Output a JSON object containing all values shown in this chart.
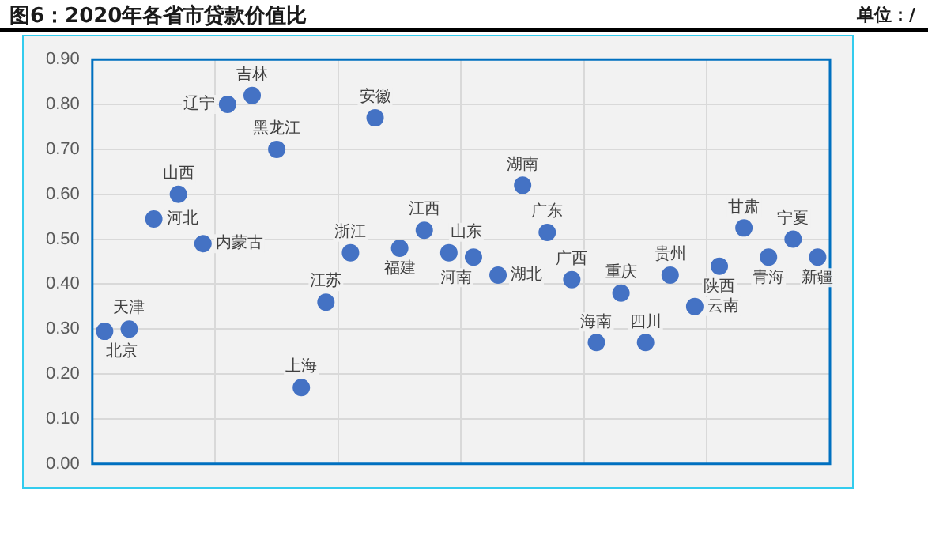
{
  "chart_data": {
    "type": "scatter",
    "title": "图6：2020年各省市贷款价值比",
    "annotations": [
      "单位：/"
    ],
    "categories": [
      null,
      null,
      null,
      null,
      null,
      null,
      null,
      null,
      null,
      null,
      null,
      null,
      null,
      null,
      null,
      null,
      null,
      null,
      null,
      null,
      null,
      null,
      null,
      null,
      null,
      null,
      null,
      null,
      null,
      null
    ],
    "series": [
      {
        "name": "北京",
        "color": "#4472c4",
        "values": [
          0.295,
          null,
          null,
          null,
          null,
          null,
          null,
          null,
          null,
          null,
          null,
          null,
          null,
          null,
          null,
          null,
          null,
          null,
          null,
          null,
          null,
          null,
          null,
          null,
          null,
          null,
          null,
          null,
          null,
          null
        ]
      },
      {
        "name": "天津",
        "color": "#4472c4",
        "values": [
          null,
          0.3,
          null,
          null,
          null,
          null,
          null,
          null,
          null,
          null,
          null,
          null,
          null,
          null,
          null,
          null,
          null,
          null,
          null,
          null,
          null,
          null,
          null,
          null,
          null,
          null,
          null,
          null,
          null,
          null
        ]
      },
      {
        "name": "河北",
        "color": "#4472c4",
        "values": [
          null,
          null,
          0.545,
          null,
          null,
          null,
          null,
          null,
          null,
          null,
          null,
          null,
          null,
          null,
          null,
          null,
          null,
          null,
          null,
          null,
          null,
          null,
          null,
          null,
          null,
          null,
          null,
          null,
          null,
          null
        ]
      },
      {
        "name": "山西",
        "color": "#4472c4",
        "values": [
          null,
          null,
          null,
          0.6,
          null,
          null,
          null,
          null,
          null,
          null,
          null,
          null,
          null,
          null,
          null,
          null,
          null,
          null,
          null,
          null,
          null,
          null,
          null,
          null,
          null,
          null,
          null,
          null,
          null,
          null
        ]
      },
      {
        "name": "内蒙古",
        "color": "#4472c4",
        "values": [
          null,
          null,
          null,
          null,
          0.49,
          null,
          null,
          null,
          null,
          null,
          null,
          null,
          null,
          null,
          null,
          null,
          null,
          null,
          null,
          null,
          null,
          null,
          null,
          null,
          null,
          null,
          null,
          null,
          null,
          null
        ]
      },
      {
        "name": "辽宁",
        "color": "#4472c4",
        "values": [
          null,
          null,
          null,
          null,
          null,
          0.8,
          null,
          null,
          null,
          null,
          null,
          null,
          null,
          null,
          null,
          null,
          null,
          null,
          null,
          null,
          null,
          null,
          null,
          null,
          null,
          null,
          null,
          null,
          null,
          null
        ]
      },
      {
        "name": "吉林",
        "color": "#4472c4",
        "values": [
          null,
          null,
          null,
          null,
          null,
          null,
          0.82,
          null,
          null,
          null,
          null,
          null,
          null,
          null,
          null,
          null,
          null,
          null,
          null,
          null,
          null,
          null,
          null,
          null,
          null,
          null,
          null,
          null,
          null,
          null
        ]
      },
      {
        "name": "黑龙江",
        "color": "#4472c4",
        "values": [
          null,
          null,
          null,
          null,
          null,
          null,
          null,
          0.7,
          null,
          null,
          null,
          null,
          null,
          null,
          null,
          null,
          null,
          null,
          null,
          null,
          null,
          null,
          null,
          null,
          null,
          null,
          null,
          null,
          null,
          null
        ]
      },
      {
        "name": "上海",
        "color": "#4472c4",
        "values": [
          null,
          null,
          null,
          null,
          null,
          null,
          null,
          null,
          0.17,
          null,
          null,
          null,
          null,
          null,
          null,
          null,
          null,
          null,
          null,
          null,
          null,
          null,
          null,
          null,
          null,
          null,
          null,
          null,
          null,
          null
        ]
      },
      {
        "name": "江苏",
        "color": "#4472c4",
        "values": [
          null,
          null,
          null,
          null,
          null,
          null,
          null,
          null,
          null,
          0.36,
          null,
          null,
          null,
          null,
          null,
          null,
          null,
          null,
          null,
          null,
          null,
          null,
          null,
          null,
          null,
          null,
          null,
          null,
          null,
          null
        ]
      },
      {
        "name": "浙江",
        "color": "#4472c4",
        "values": [
          null,
          null,
          null,
          null,
          null,
          null,
          null,
          null,
          null,
          null,
          0.47,
          null,
          null,
          null,
          null,
          null,
          null,
          null,
          null,
          null,
          null,
          null,
          null,
          null,
          null,
          null,
          null,
          null,
          null,
          null
        ]
      },
      {
        "name": "安徽",
        "color": "#4472c4",
        "values": [
          null,
          null,
          null,
          null,
          null,
          null,
          null,
          null,
          null,
          null,
          null,
          0.77,
          null,
          null,
          null,
          null,
          null,
          null,
          null,
          null,
          null,
          null,
          null,
          null,
          null,
          null,
          null,
          null,
          null,
          null
        ]
      },
      {
        "name": "福建",
        "color": "#4472c4",
        "values": [
          null,
          null,
          null,
          null,
          null,
          null,
          null,
          null,
          null,
          null,
          null,
          null,
          0.48,
          null,
          null,
          null,
          null,
          null,
          null,
          null,
          null,
          null,
          null,
          null,
          null,
          null,
          null,
          null,
          null,
          null
        ]
      },
      {
        "name": "江西",
        "color": "#4472c4",
        "values": [
          null,
          null,
          null,
          null,
          null,
          null,
          null,
          null,
          null,
          null,
          null,
          null,
          null,
          0.52,
          null,
          null,
          null,
          null,
          null,
          null,
          null,
          null,
          null,
          null,
          null,
          null,
          null,
          null,
          null,
          null
        ]
      },
      {
        "name": "山东",
        "color": "#4472c4",
        "values": [
          null,
          null,
          null,
          null,
          null,
          null,
          null,
          null,
          null,
          null,
          null,
          null,
          null,
          null,
          0.47,
          null,
          null,
          null,
          null,
          null,
          null,
          null,
          null,
          null,
          null,
          null,
          null,
          null,
          null,
          null
        ]
      },
      {
        "name": "河南",
        "color": "#4472c4",
        "values": [
          null,
          null,
          null,
          null,
          null,
          null,
          null,
          null,
          null,
          null,
          null,
          null,
          null,
          null,
          null,
          0.46,
          null,
          null,
          null,
          null,
          null,
          null,
          null,
          null,
          null,
          null,
          null,
          null,
          null,
          null
        ]
      },
      {
        "name": "湖北",
        "color": "#4472c4",
        "values": [
          null,
          null,
          null,
          null,
          null,
          null,
          null,
          null,
          null,
          null,
          null,
          null,
          null,
          null,
          null,
          null,
          0.42,
          null,
          null,
          null,
          null,
          null,
          null,
          null,
          null,
          null,
          null,
          null,
          null,
          null
        ]
      },
      {
        "name": "湖南",
        "color": "#4472c4",
        "values": [
          null,
          null,
          null,
          null,
          null,
          null,
          null,
          null,
          null,
          null,
          null,
          null,
          null,
          null,
          null,
          null,
          null,
          0.62,
          null,
          null,
          null,
          null,
          null,
          null,
          null,
          null,
          null,
          null,
          null,
          null
        ]
      },
      {
        "name": "广东",
        "color": "#4472c4",
        "values": [
          null,
          null,
          null,
          null,
          null,
          null,
          null,
          null,
          null,
          null,
          null,
          null,
          null,
          null,
          null,
          null,
          null,
          null,
          0.515,
          null,
          null,
          null,
          null,
          null,
          null,
          null,
          null,
          null,
          null,
          null
        ]
      },
      {
        "name": "广西",
        "color": "#4472c4",
        "values": [
          null,
          null,
          null,
          null,
          null,
          null,
          null,
          null,
          null,
          null,
          null,
          null,
          null,
          null,
          null,
          null,
          null,
          null,
          null,
          0.41,
          null,
          null,
          null,
          null,
          null,
          null,
          null,
          null,
          null,
          null
        ]
      },
      {
        "name": "海南",
        "color": "#4472c4",
        "values": [
          null,
          null,
          null,
          null,
          null,
          null,
          null,
          null,
          null,
          null,
          null,
          null,
          null,
          null,
          null,
          null,
          null,
          null,
          null,
          null,
          0.27,
          null,
          null,
          null,
          null,
          null,
          null,
          null,
          null,
          null
        ]
      },
      {
        "name": "重庆",
        "color": "#4472c4",
        "values": [
          null,
          null,
          null,
          null,
          null,
          null,
          null,
          null,
          null,
          null,
          null,
          null,
          null,
          null,
          null,
          null,
          null,
          null,
          null,
          null,
          null,
          0.38,
          null,
          null,
          null,
          null,
          null,
          null,
          null,
          null
        ]
      },
      {
        "name": "四川",
        "color": "#4472c4",
        "values": [
          null,
          null,
          null,
          null,
          null,
          null,
          null,
          null,
          null,
          null,
          null,
          null,
          null,
          null,
          null,
          null,
          null,
          null,
          null,
          null,
          null,
          null,
          0.27,
          null,
          null,
          null,
          null,
          null,
          null,
          null
        ]
      },
      {
        "name": "贵州",
        "color": "#4472c4",
        "values": [
          null,
          null,
          null,
          null,
          null,
          null,
          null,
          null,
          null,
          null,
          null,
          null,
          null,
          null,
          null,
          null,
          null,
          null,
          null,
          null,
          null,
          null,
          null,
          0.42,
          null,
          null,
          null,
          null,
          null,
          null
        ]
      },
      {
        "name": "云南",
        "color": "#4472c4",
        "values": [
          null,
          null,
          null,
          null,
          null,
          null,
          null,
          null,
          null,
          null,
          null,
          null,
          null,
          null,
          null,
          null,
          null,
          null,
          null,
          null,
          null,
          null,
          null,
          null,
          0.35,
          null,
          null,
          null,
          null,
          null
        ]
      },
      {
        "name": "陕西",
        "color": "#4472c4",
        "values": [
          null,
          null,
          null,
          null,
          null,
          null,
          null,
          null,
          null,
          null,
          null,
          null,
          null,
          null,
          null,
          null,
          null,
          null,
          null,
          null,
          null,
          null,
          null,
          null,
          null,
          0.44,
          null,
          null,
          null,
          null
        ]
      },
      {
        "name": "甘肃",
        "color": "#4472c4",
        "values": [
          null,
          null,
          null,
          null,
          null,
          null,
          null,
          null,
          null,
          null,
          null,
          null,
          null,
          null,
          null,
          null,
          null,
          null,
          null,
          null,
          null,
          null,
          null,
          null,
          null,
          null,
          0.525,
          null,
          null,
          null
        ]
      },
      {
        "name": "青海",
        "color": "#4472c4",
        "values": [
          null,
          null,
          null,
          null,
          null,
          null,
          null,
          null,
          null,
          null,
          null,
          null,
          null,
          null,
          null,
          null,
          null,
          null,
          null,
          null,
          null,
          null,
          null,
          null,
          null,
          null,
          null,
          0.46,
          null,
          null
        ]
      },
      {
        "name": "宁夏",
        "color": "#4472c4",
        "values": [
          null,
          null,
          null,
          null,
          null,
          null,
          null,
          null,
          null,
          null,
          null,
          null,
          null,
          null,
          null,
          null,
          null,
          null,
          null,
          null,
          null,
          null,
          null,
          null,
          null,
          null,
          null,
          null,
          0.5,
          null
        ]
      },
      {
        "name": "新疆",
        "color": "#4472c4",
        "values": [
          null,
          null,
          null,
          null,
          null,
          null,
          null,
          null,
          null,
          null,
          null,
          null,
          null,
          null,
          null,
          null,
          null,
          null,
          null,
          null,
          null,
          null,
          null,
          null,
          null,
          null,
          null,
          null,
          null,
          0.46
        ]
      }
    ],
    "marker": "circle",
    "grid": true,
    "tick_labels": "y",
    "ylim": [
      0,
      0.9
    ],
    "yticks": [
      {
        "value": 0,
        "label": "0.00"
      },
      {
        "value": 0.1,
        "label": "0.10"
      },
      {
        "value": 0.2,
        "label": "0.20"
      },
      {
        "value": 0.3,
        "label": "0.30"
      },
      {
        "value": 0.4,
        "label": "0.40"
      },
      {
        "value": 0.5,
        "label": "0.50"
      },
      {
        "value": 0.6,
        "label": "0.60"
      },
      {
        "value": 0.7,
        "label": "0.70"
      },
      {
        "value": 0.8,
        "label": "0.80"
      },
      {
        "value": 0.9,
        "label": "0.90"
      }
    ]
  }
}
